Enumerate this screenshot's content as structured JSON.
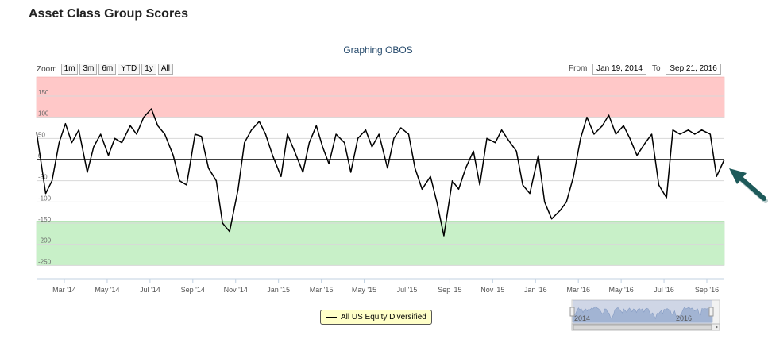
{
  "page_title": "Asset Class Group Scores",
  "chart_title": "Graphing OBOS",
  "zoom": {
    "label": "Zoom",
    "buttons": [
      "1m",
      "3m",
      "6m",
      "YTD",
      "1y",
      "All"
    ]
  },
  "range": {
    "from_label": "From",
    "from_value": "Jan 19, 2014",
    "to_label": "To",
    "to_value": "Sep 21, 2016"
  },
  "legend": {
    "label": "All US Equity Diversified"
  },
  "navigator": {
    "labels": [
      "2014",
      "2016"
    ]
  },
  "colors": {
    "overbought_band": "#ffc8c8",
    "oversold_band": "#c8f0c8",
    "line": "#000000",
    "arrow": "#1e5a5a"
  },
  "chart_data": {
    "type": "line",
    "title": "Graphing OBOS",
    "ylim": [
      -270,
      195
    ],
    "yticks": [
      150,
      100,
      50,
      0,
      -50,
      -100,
      -150,
      -200,
      -250
    ],
    "xticks": [
      "Mar '14",
      "May '14",
      "Jul '14",
      "Sep '14",
      "Nov '14",
      "Jan '15",
      "Mar '15",
      "May '15",
      "Jul '15",
      "Sep '15",
      "Nov '15",
      "Jan '16",
      "Mar '16",
      "May '16",
      "Jul '16",
      "Sep '16"
    ],
    "bands": [
      {
        "name": "overbought",
        "from": 100,
        "to": 195
      },
      {
        "name": "oversold",
        "from": -250,
        "to": -145
      }
    ],
    "series": [
      {
        "name": "All US Equity Diversified",
        "x": [
          "2014-01-19",
          "2014-02-01",
          "2014-02-10",
          "2014-02-20",
          "2014-03-01",
          "2014-03-10",
          "2014-03-20",
          "2014-04-01",
          "2014-04-10",
          "2014-04-20",
          "2014-05-01",
          "2014-05-10",
          "2014-05-20",
          "2014-06-01",
          "2014-06-10",
          "2014-06-20",
          "2014-07-01",
          "2014-07-10",
          "2014-07-20",
          "2014-08-01",
          "2014-08-10",
          "2014-08-20",
          "2014-09-01",
          "2014-09-10",
          "2014-09-20",
          "2014-10-01",
          "2014-10-10",
          "2014-10-20",
          "2014-11-01",
          "2014-11-10",
          "2014-11-20",
          "2014-12-01",
          "2014-12-10",
          "2014-12-20",
          "2015-01-01",
          "2015-01-10",
          "2015-01-20",
          "2015-02-01",
          "2015-02-10",
          "2015-02-20",
          "2015-03-01",
          "2015-03-10",
          "2015-03-20",
          "2015-04-01",
          "2015-04-10",
          "2015-04-20",
          "2015-05-01",
          "2015-05-10",
          "2015-05-20",
          "2015-06-01",
          "2015-06-10",
          "2015-06-20",
          "2015-07-01",
          "2015-07-10",
          "2015-07-20",
          "2015-08-01",
          "2015-08-10",
          "2015-08-20",
          "2015-09-01",
          "2015-09-10",
          "2015-09-20",
          "2015-10-01",
          "2015-10-10",
          "2015-10-20",
          "2015-11-01",
          "2015-11-10",
          "2015-11-20",
          "2015-12-01",
          "2015-12-10",
          "2015-12-20",
          "2016-01-01",
          "2016-01-10",
          "2016-01-20",
          "2016-02-01",
          "2016-02-10",
          "2016-02-20",
          "2016-03-01",
          "2016-03-10",
          "2016-03-20",
          "2016-04-01",
          "2016-04-10",
          "2016-04-20",
          "2016-05-01",
          "2016-05-10",
          "2016-05-20",
          "2016-06-01",
          "2016-06-10",
          "2016-06-20",
          "2016-07-01",
          "2016-07-10",
          "2016-07-20",
          "2016-08-01",
          "2016-08-10",
          "2016-08-20",
          "2016-09-01",
          "2016-09-10",
          "2016-09-21"
        ],
        "values": [
          65,
          -80,
          -50,
          40,
          85,
          40,
          70,
          -30,
          30,
          60,
          10,
          50,
          40,
          80,
          60,
          100,
          120,
          80,
          60,
          10,
          -50,
          -60,
          60,
          55,
          -20,
          -50,
          -150,
          -170,
          -70,
          40,
          70,
          90,
          60,
          10,
          -40,
          60,
          20,
          -30,
          40,
          80,
          30,
          -10,
          60,
          40,
          -30,
          50,
          70,
          30,
          60,
          -20,
          50,
          75,
          60,
          -20,
          -70,
          -40,
          -100,
          -180,
          -50,
          -70,
          -20,
          20,
          -60,
          50,
          40,
          70,
          45,
          20,
          -60,
          -80,
          10,
          -100,
          -140,
          -120,
          -100,
          -40,
          50,
          100,
          60,
          80,
          105,
          60,
          80,
          50,
          10,
          40,
          60,
          -60,
          -90,
          70,
          60,
          70,
          60,
          70,
          60,
          -40,
          0
        ]
      }
    ]
  }
}
